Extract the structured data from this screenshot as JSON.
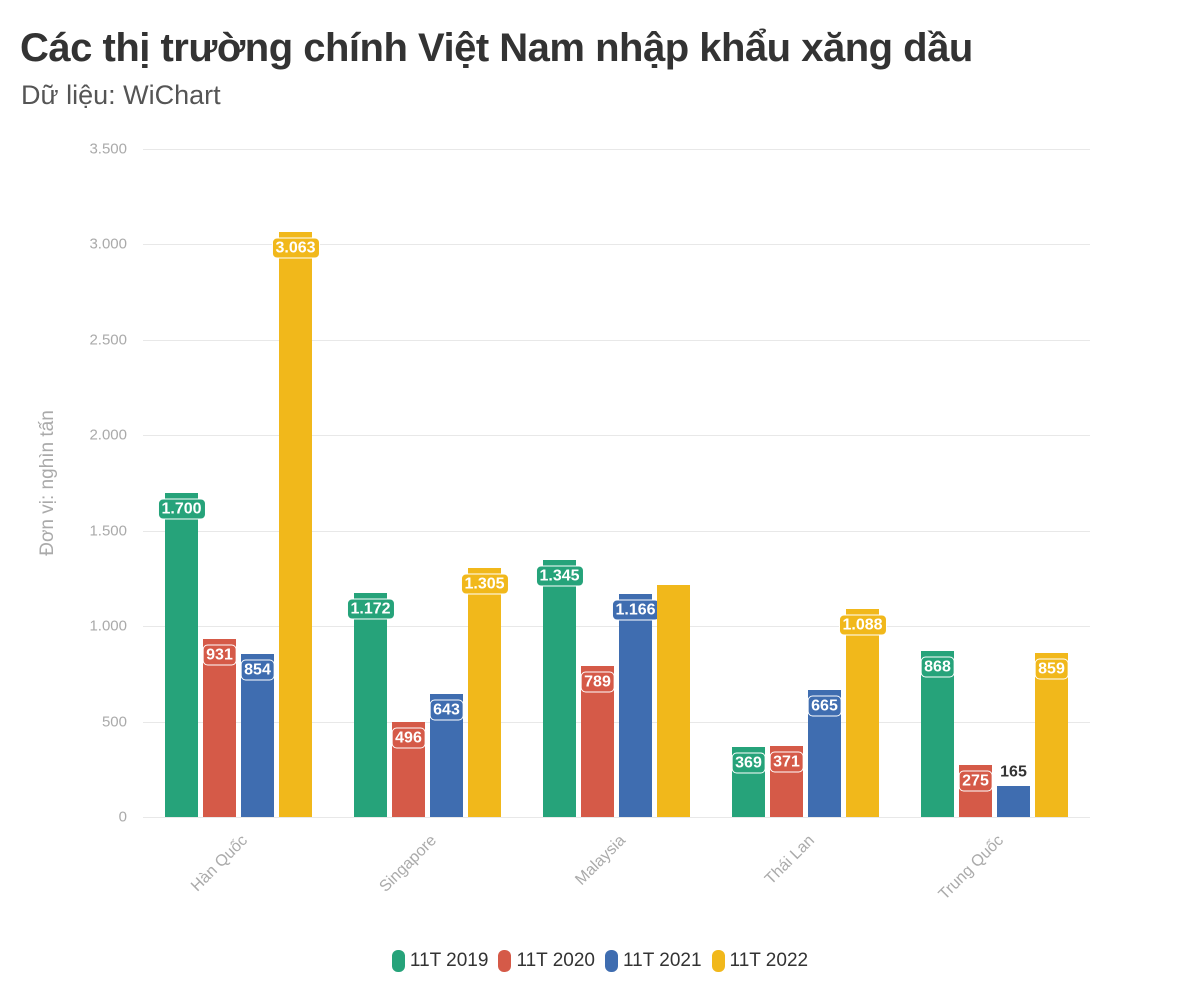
{
  "header": {
    "title": "Các thị trường chính Việt Nam nhập khẩu xăng dầu",
    "subtitle": "Dữ liệu: WiChart"
  },
  "axis": {
    "ylabel": "Đơn vị: nghìn tấn",
    "yticks": [
      "0",
      "500",
      "1.000",
      "1.500",
      "2.000",
      "2.500",
      "3.000",
      "3.500"
    ]
  },
  "legend": [
    {
      "label": "11T 2019",
      "color": "#26a37a"
    },
    {
      "label": "11T 2020",
      "color": "#d55a48"
    },
    {
      "label": "11T 2021",
      "color": "#3f6db0"
    },
    {
      "label": "11T 2022",
      "color": "#f1b81b"
    }
  ],
  "labels": {
    "han_quoc": [
      "1.700",
      "931",
      "854",
      "3.063"
    ],
    "singapore": [
      "1.172",
      "496",
      "643",
      "1.305"
    ],
    "malaysia": [
      "1.345",
      "789",
      "1.166",
      ""
    ],
    "thai_lan": [
      "369",
      "371",
      "665",
      "1.088"
    ],
    "trung_quoc": [
      "868",
      "275",
      "165",
      "859"
    ]
  },
  "categories": [
    "Hàn Quốc",
    "Singapore",
    "Malaysia",
    "Thái Lan",
    "Trung Quốc"
  ],
  "chart_data": {
    "type": "bar",
    "title": "Các thị trường chính Việt Nam nhập khẩu xăng dầu",
    "subtitle": "Dữ liệu: WiChart",
    "xlabel": "",
    "ylabel": "Đơn vị: nghìn tấn",
    "ylim": [
      0,
      3500
    ],
    "yticks": [
      0,
      500,
      1000,
      1500,
      2000,
      2500,
      3000,
      3500
    ],
    "grid": true,
    "legend_position": "bottom",
    "categories": [
      "Hàn Quốc",
      "Singapore",
      "Malaysia",
      "Thái Lan",
      "Trung Quốc"
    ],
    "series": [
      {
        "name": "11T 2019",
        "color": "#26a37a",
        "values": [
          1700,
          1172,
          1345,
          369,
          868
        ]
      },
      {
        "name": "11T 2020",
        "color": "#d55a48",
        "values": [
          931,
          496,
          789,
          371,
          275
        ]
      },
      {
        "name": "11T 2021",
        "color": "#3f6db0",
        "values": [
          854,
          643,
          1166,
          665,
          165
        ]
      },
      {
        "name": "11T 2022",
        "color": "#f1b81b",
        "values": [
          3063,
          1305,
          1215,
          1088,
          859
        ]
      }
    ],
    "notes": "Malaysia 11T 2022 bar is unlabeled in the image; value ~1215 estimated from gridlines."
  }
}
